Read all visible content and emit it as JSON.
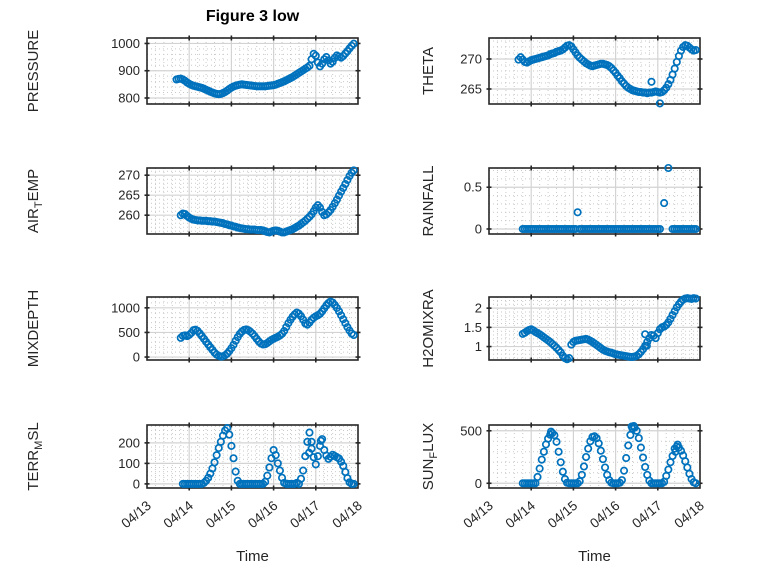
{
  "figure": {
    "title": "Figure 3 low",
    "xlabel": "Time",
    "x_tick_labels": [
      "04/13",
      "04/14",
      "04/15",
      "04/16",
      "04/17",
      "04/18"
    ],
    "x_tick_values": [
      13,
      14,
      15,
      16,
      17,
      18
    ]
  },
  "colors": {
    "marker": "#0072BD",
    "frame": "#262626",
    "grid": "#d3d3d3",
    "minor_grid": "#c9c9c9",
    "text": "#262626",
    "title": "#000000"
  },
  "chart_data": [
    {
      "id": "PRESSURE",
      "type": "scatter",
      "col": 0,
      "row": 0,
      "ylabel": "PRESSURE",
      "ylabel_parts": [
        {
          "t": "PRESSURE"
        }
      ],
      "ylim": [
        778,
        1020
      ],
      "yticks": [
        800,
        900,
        1000
      ],
      "yminor": 20,
      "xminor": 0.2,
      "x0": 13.7,
      "dx": 0.05,
      "y": [
        868,
        870,
        871,
        868,
        863,
        857,
        852,
        848,
        845,
        843,
        841,
        839,
        837,
        834,
        830,
        827,
        823,
        820,
        817,
        815,
        814,
        815,
        818,
        822,
        827,
        833,
        838,
        842,
        845,
        847,
        849,
        850,
        849,
        848,
        847,
        846,
        845,
        844,
        843,
        843,
        843,
        843,
        843,
        844,
        845,
        846,
        847,
        849,
        852,
        855,
        858,
        861,
        865,
        869,
        873,
        877,
        882,
        887,
        892,
        897,
        902,
        907,
        912,
        918,
        942,
        962,
        955,
        930,
        916,
        926,
        942,
        950,
        938,
        926,
        933,
        947,
        956,
        952,
        948,
        954,
        963,
        972,
        982,
        991,
        999
      ],
      "extra": []
    },
    {
      "id": "THETA",
      "type": "scatter",
      "col": 1,
      "row": 0,
      "ylabel": "THETA",
      "ylabel_parts": [
        {
          "t": "THETA"
        }
      ],
      "ylim": [
        262.5,
        273.5
      ],
      "yticks": [
        265,
        270
      ],
      "yminor": 1,
      "xminor": 0.2,
      "x0": 13.7,
      "dx": 0.05,
      "y": [
        269.9,
        270.3,
        269.9,
        269.5,
        269.4,
        269.6,
        269.8,
        269.9,
        270.0,
        270.1,
        270.2,
        270.3,
        270.4,
        270.5,
        270.6,
        270.8,
        270.9,
        271.0,
        271.2,
        271.3,
        271.4,
        271.6,
        271.9,
        272.2,
        272.3,
        272.1,
        271.6,
        271.1,
        270.6,
        270.2,
        269.9,
        269.6,
        269.3,
        269.1,
        268.9,
        268.8,
        268.9,
        269.0,
        269.1,
        269.2,
        269.2,
        269.1,
        269.0,
        268.8,
        268.5,
        268.1,
        267.7,
        267.2,
        266.8,
        266.3,
        265.9,
        265.5,
        265.2,
        265.0,
        264.8,
        264.7,
        264.6,
        264.5,
        264.5,
        264.4,
        264.4,
        264.3,
        264.4,
        264.4,
        264.5,
        264.6,
        264.5,
        264.4,
        264.5,
        264.8,
        265.2,
        265.8,
        266.5,
        267.4,
        268.4,
        269.5,
        270.5,
        271.4,
        272.0,
        272.3,
        272.2,
        271.9,
        271.6,
        271.4,
        271.5
      ],
      "extra": [
        [
          16.85,
          266.2
        ],
        [
          17.05,
          262.6
        ]
      ]
    },
    {
      "id": "AIR_TEMP",
      "type": "scatter",
      "col": 0,
      "row": 1,
      "ylabel": "AIR_TEMP",
      "ylabel_parts": [
        {
          "t": "AIR"
        },
        {
          "t": "T",
          "sub": true
        },
        {
          "t": "EMP"
        }
      ],
      "ylim": [
        255.3,
        271.8
      ],
      "yticks": [
        260,
        265,
        270
      ],
      "yminor": 1,
      "xminor": 0.2,
      "x0": 13.7,
      "dx": 0.05,
      "y": [
        null,
        null,
        260.0,
        260.4,
        260.3,
        259.8,
        259.4,
        259.1,
        258.9,
        258.8,
        258.7,
        258.7,
        258.6,
        258.6,
        258.6,
        258.5,
        258.5,
        258.4,
        258.4,
        258.3,
        258.2,
        258.1,
        258.0,
        257.8,
        257.7,
        257.5,
        257.4,
        257.2,
        257.1,
        256.9,
        256.8,
        256.7,
        256.6,
        256.5,
        256.5,
        256.4,
        256.4,
        256.4,
        256.3,
        256.3,
        256.3,
        256.2,
        256.0,
        255.8,
        255.7,
        255.9,
        256.1,
        256.2,
        256.1,
        255.9,
        255.7,
        255.7,
        255.9,
        256.1,
        256.3,
        256.5,
        256.8,
        257.1,
        257.4,
        257.8,
        258.2,
        258.6,
        259.1,
        259.6,
        260.2,
        261.0,
        261.9,
        262.5,
        261.9,
        260.8,
        260.0,
        260.2,
        260.7,
        261.3,
        262.1,
        263.0,
        263.9,
        264.9,
        265.9,
        266.8,
        267.8,
        268.8,
        269.8,
        270.6,
        271.2
      ],
      "extra": []
    },
    {
      "id": "RAINFALL",
      "type": "scatter",
      "col": 1,
      "row": 1,
      "ylabel": "RAINFALL",
      "ylabel_parts": [
        {
          "t": "RAINFALL"
        }
      ],
      "ylim": [
        -0.06,
        0.73
      ],
      "yticks": [
        0,
        0.5
      ],
      "yminor": 0.1,
      "xminor": 0.2,
      "x0": 13.7,
      "dx": 0.05,
      "y": [
        null,
        null,
        0,
        0,
        0,
        0,
        0,
        0,
        0,
        0,
        0,
        0,
        0,
        0,
        0,
        0,
        0,
        0,
        0,
        0,
        0,
        0,
        0,
        0,
        0,
        0,
        0,
        0,
        null,
        0,
        0,
        0,
        0,
        0,
        0,
        0,
        0,
        0,
        0,
        0,
        0,
        0,
        0,
        0,
        0,
        0,
        0,
        0,
        0,
        0,
        0,
        0,
        0,
        0,
        0,
        0,
        0,
        0,
        0,
        0,
        0,
        0,
        0,
        0,
        0,
        0,
        0,
        0,
        null,
        null,
        null,
        null,
        null,
        0,
        0,
        0,
        0,
        0,
        0,
        0,
        0,
        0,
        0,
        0,
        0
      ],
      "extra": [
        [
          15.1,
          0.2
        ],
        [
          17.15,
          0.31
        ],
        [
          17.25,
          0.73
        ]
      ]
    },
    {
      "id": "MIXDEPTH",
      "type": "scatter",
      "col": 0,
      "row": 2,
      "ylabel": "MIXDEPTH",
      "ylabel_parts": [
        {
          "t": "MIXDEPTH"
        }
      ],
      "ylim": [
        -60,
        1220
      ],
      "yticks": [
        0,
        500,
        1000
      ],
      "yminor": 100,
      "xminor": 0.2,
      "x0": 13.7,
      "dx": 0.05,
      "y": [
        null,
        null,
        390,
        430,
        440,
        425,
        450,
        490,
        545,
        555,
        530,
        480,
        425,
        370,
        310,
        255,
        200,
        145,
        90,
        50,
        25,
        10,
        15,
        35,
        70,
        120,
        180,
        250,
        330,
        405,
        470,
        520,
        550,
        560,
        545,
        515,
        475,
        425,
        370,
        315,
        275,
        255,
        262,
        285,
        318,
        348,
        372,
        392,
        412,
        438,
        472,
        528,
        608,
        688,
        758,
        818,
        868,
        905,
        880,
        828,
        760,
        685,
        658,
        700,
        758,
        798,
        828,
        850,
        878,
        928,
        988,
        1048,
        1098,
        1128,
        1108,
        1058,
        998,
        928,
        848,
        768,
        688,
        608,
        538,
        478,
        448
      ],
      "extra": []
    },
    {
      "id": "H2OMIXRA",
      "type": "scatter",
      "col": 1,
      "row": 2,
      "ylabel": "H2OMIXRA",
      "ylabel_parts": [
        {
          "t": "H2OMIXRA"
        }
      ],
      "ylim": [
        0.65,
        2.29
      ],
      "yticks": [
        1,
        1.5,
        2
      ],
      "yminor": 0.1,
      "xminor": 0.2,
      "x0": 13.7,
      "dx": 0.05,
      "y": [
        null,
        null,
        1.33,
        1.36,
        1.4,
        1.43,
        1.45,
        1.42,
        1.38,
        1.35,
        1.32,
        1.28,
        1.24,
        1.2,
        1.16,
        1.12,
        1.07,
        1.02,
        0.97,
        0.91,
        0.85,
        0.76,
        0.7,
        0.67,
        0.7,
        1.05,
        1.12,
        1.15,
        1.16,
        1.17,
        1.18,
        1.19,
        1.2,
        1.18,
        1.15,
        1.12,
        1.08,
        1.04,
        1.0,
        0.96,
        0.92,
        0.89,
        0.87,
        0.85,
        0.84,
        0.82,
        0.8,
        0.79,
        0.78,
        0.77,
        0.76,
        0.75,
        0.74,
        0.73,
        0.73,
        0.74,
        0.76,
        0.8,
        0.86,
        0.93,
        1.02,
        1.12,
        1.22,
        1.3,
        1.28,
        1.22,
        1.35,
        1.45,
        1.5,
        1.52,
        1.56,
        1.63,
        1.72,
        1.82,
        1.92,
        2.02,
        2.1,
        2.17,
        2.22,
        2.25,
        2.26,
        2.25,
        2.24,
        2.26,
        2.25
      ],
      "extra": [
        [
          16.7,
          1.32
        ],
        [
          16.74,
          1.02
        ]
      ]
    },
    {
      "id": "TERR_MSL",
      "type": "scatter",
      "col": 0,
      "row": 3,
      "ylabel": "TERR_MSL",
      "ylabel_parts": [
        {
          "t": "TERR"
        },
        {
          "t": "M",
          "sub": true
        },
        {
          "t": "SL"
        }
      ],
      "ylim": [
        -20,
        287
      ],
      "yticks": [
        0,
        100,
        200
      ],
      "yminor": 20,
      "xminor": 0.2,
      "x0": 13.7,
      "dx": 0.05,
      "y": [
        null,
        null,
        null,
        0,
        0,
        0,
        0,
        0,
        0,
        0,
        0,
        0,
        0,
        5,
        15,
        30,
        50,
        75,
        105,
        140,
        175,
        205,
        235,
        260,
        272,
        240,
        185,
        125,
        60,
        15,
        0,
        0,
        0,
        0,
        0,
        0,
        0,
        0,
        0,
        0,
        0,
        0,
        10,
        40,
        80,
        125,
        165,
        140,
        100,
        65,
        30,
        5,
        0,
        0,
        0,
        0,
        0,
        5,
        0,
        25,
        65,
        135,
        205,
        250,
        205,
        130,
        95,
        135,
        185,
        218,
        165,
        138,
        122,
        132,
        142,
        136,
        130,
        124,
        108,
        88,
        58,
        28,
        8,
        0,
        0
      ],
      "extra": [
        [
          16.84,
          152
        ],
        [
          16.9,
          172
        ],
        [
          17.12,
          210
        ]
      ]
    },
    {
      "id": "SUN_FLUX",
      "type": "scatter",
      "col": 1,
      "row": 3,
      "ylabel": "SUN_FLUX",
      "ylabel_parts": [
        {
          "t": "SUN"
        },
        {
          "t": "F",
          "sub": true
        },
        {
          "t": "LUX"
        }
      ],
      "ylim": [
        -45,
        555
      ],
      "yticks": [
        0,
        500
      ],
      "yminor": 100,
      "xminor": 0.2,
      "x0": 13.7,
      "dx": 0.05,
      "y": [
        null,
        null,
        0,
        0,
        0,
        0,
        0,
        0,
        0,
        60,
        140,
        225,
        300,
        370,
        425,
        462,
        478,
        458,
        395,
        300,
        200,
        110,
        40,
        5,
        0,
        0,
        0,
        0,
        0,
        20,
        80,
        160,
        250,
        330,
        400,
        440,
        448,
        430,
        380,
        310,
        230,
        150,
        80,
        30,
        5,
        0,
        0,
        0,
        5,
        30,
        120,
        240,
        360,
        460,
        520,
        530,
        500,
        430,
        340,
        245,
        155,
        80,
        25,
        0,
        0,
        0,
        0,
        0,
        0,
        15,
        70,
        130,
        200,
        260,
        330,
        350,
        340,
        310,
        265,
        210,
        150,
        90,
        40,
        10,
        0
      ],
      "extra": [
        [
          14.47,
          492
        ],
        [
          16.38,
          540
        ],
        [
          16.43,
          545
        ],
        [
          17.42,
          300
        ],
        [
          17.47,
          368
        ]
      ]
    }
  ]
}
